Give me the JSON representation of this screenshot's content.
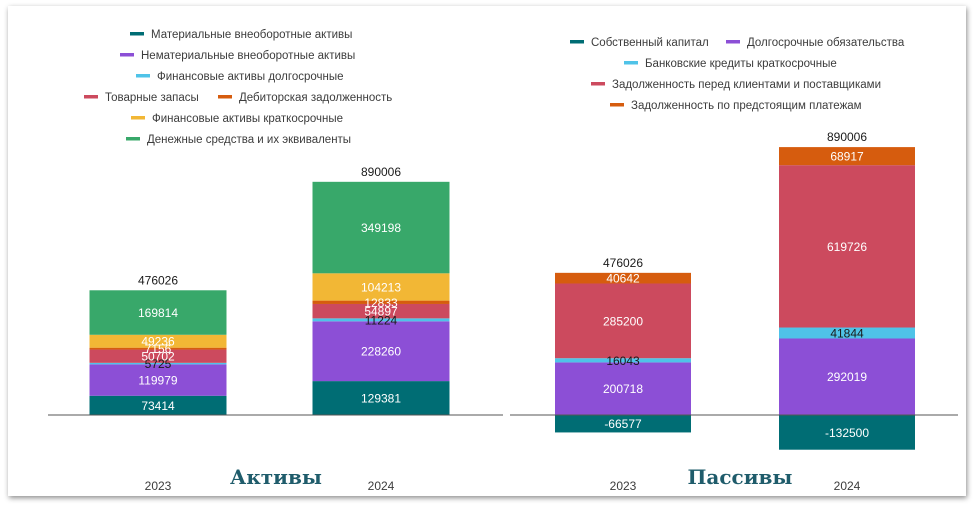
{
  "chart_data": [
    {
      "type": "bar",
      "stacked": true,
      "title": "Активы",
      "categories": [
        "2023",
        "2024"
      ],
      "totals": [
        476026,
        890006
      ],
      "series": [
        {
          "name": "Материальные внеоборотные активы",
          "color": "#006d74",
          "values": [
            73414,
            129381
          ]
        },
        {
          "name": "Нематериальные внеоборотные активы",
          "color": "#8c4fd6",
          "values": [
            119979,
            228260
          ]
        },
        {
          "name": "Финансовые активы долгосрочные",
          "color": "#4fc3e8",
          "values": [
            5725,
            11224
          ]
        },
        {
          "name": "Товарные запасы",
          "color": "#cc4a5e",
          "values": [
            50702,
            54897
          ]
        },
        {
          "name": "Дебиторская задолженность",
          "color": "#d65c0e",
          "values": [
            7156,
            12833
          ]
        },
        {
          "name": "Финансовые активы краткосрочные",
          "color": "#f2b735",
          "values": [
            49236,
            104213
          ]
        },
        {
          "name": "Денежные средства и их эквиваленты",
          "color": "#38a86a",
          "values": [
            169814,
            349198
          ]
        }
      ]
    },
    {
      "type": "bar",
      "stacked": true,
      "title": "Пассивы",
      "categories": [
        "2023",
        "2024"
      ],
      "totals": [
        476026,
        890006
      ],
      "series": [
        {
          "name": "Собственный капитал",
          "color": "#006d74",
          "values": [
            -66577,
            -132500
          ]
        },
        {
          "name": "Долгосрочные обязательства",
          "color": "#8c4fd6",
          "values": [
            200718,
            292019
          ]
        },
        {
          "name": "Банковские кредиты краткосрочные",
          "color": "#4fc3e8",
          "values": [
            16043,
            41844
          ]
        },
        {
          "name": "Задолженность перед клиентами и поставщиками",
          "color": "#cc4a5e",
          "values": [
            285200,
            619726
          ]
        },
        {
          "name": "Задолженность по предстоящим платежам",
          "color": "#d65c0e",
          "values": [
            40642,
            68917
          ]
        }
      ]
    }
  ]
}
